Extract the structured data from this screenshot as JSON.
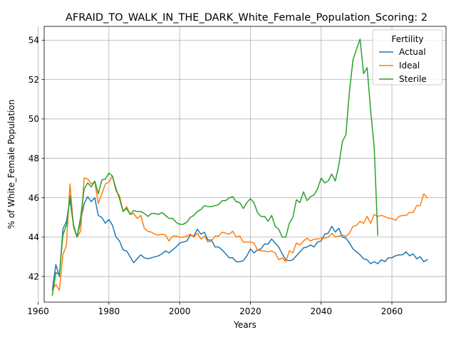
{
  "chart_data": {
    "type": "line",
    "title": "AFRAID_TO_WALK_IN_THE_DARK_White_Female_Population_Scoring: 2",
    "xlabel": "Years",
    "ylabel": "% of White_Female Population",
    "xlim": [
      1961.7,
      2075.3
    ],
    "ylim": [
      40.7,
      54.7
    ],
    "xticks": [
      1960,
      1980,
      2000,
      2020,
      2040,
      2060
    ],
    "yticks": [
      42,
      44,
      46,
      48,
      50,
      52,
      54
    ],
    "grid": true,
    "legend": {
      "title": "Fertility",
      "placement": "top-right"
    },
    "series": [
      {
        "name": "Actual",
        "color": "#1f77b4",
        "x": [
          1964,
          1965,
          1966,
          1967,
          1968,
          1969,
          1970,
          1971,
          1972,
          1973,
          1974,
          1975,
          1976,
          1977,
          1978,
          1979,
          1980,
          1981,
          1982,
          1983,
          1984,
          1985,
          1986,
          1987,
          1988,
          1989,
          1990,
          1991,
          1992,
          1993,
          1994,
          1995,
          1996,
          1997,
          1998,
          1999,
          2000,
          2001,
          2002,
          2003,
          2004,
          2005,
          2006,
          2007,
          2008,
          2009,
          2010,
          2011,
          2012,
          2013,
          2014,
          2015,
          2016,
          2017,
          2018,
          2019,
          2020,
          2021,
          2022,
          2023,
          2024,
          2025,
          2026,
          2027,
          2028,
          2029,
          2030,
          2031,
          2032,
          2033,
          2034,
          2035,
          2036,
          2037,
          2038,
          2039,
          2040,
          2041,
          2042,
          2043,
          2044,
          2045,
          2046,
          2047,
          2048,
          2049,
          2050,
          2051,
          2052,
          2053,
          2054,
          2055,
          2056,
          2057,
          2058,
          2059,
          2060,
          2061,
          2062,
          2063,
          2064,
          2065,
          2066,
          2067,
          2068,
          2069,
          2070
        ],
        "values": [
          41.3,
          42.6,
          42.0,
          44.4,
          44.8,
          45.9,
          44.6,
          44.0,
          44.8,
          45.7,
          46.05,
          45.8,
          46.0,
          45.1,
          45.0,
          44.7,
          44.9,
          44.6,
          44.0,
          43.8,
          43.35,
          43.3,
          43.0,
          42.7,
          42.9,
          43.1,
          42.95,
          42.9,
          42.95,
          43.0,
          43.05,
          43.15,
          43.3,
          43.2,
          43.35,
          43.5,
          43.7,
          43.75,
          43.8,
          44.1,
          44.05,
          44.4,
          44.15,
          44.25,
          43.85,
          43.85,
          43.5,
          43.5,
          43.35,
          43.15,
          42.95,
          42.95,
          42.75,
          42.75,
          42.8,
          43.05,
          43.4,
          43.2,
          43.35,
          43.4,
          43.65,
          43.65,
          43.9,
          43.7,
          43.5,
          43.15,
          42.85,
          42.8,
          42.85,
          43.05,
          43.25,
          43.45,
          43.5,
          43.6,
          43.5,
          43.75,
          43.8,
          44.15,
          44.2,
          44.55,
          44.25,
          44.45,
          44.0,
          43.95,
          43.7,
          43.4,
          43.25,
          43.1,
          42.9,
          42.85,
          42.65,
          42.75,
          42.65,
          42.85,
          42.75,
          42.95,
          42.95,
          43.05,
          43.1,
          43.1,
          43.25,
          43.05,
          43.15,
          42.9,
          43.0,
          42.75,
          42.85
        ]
      },
      {
        "name": "Ideal",
        "color": "#ff7f0e",
        "x": [
          1964,
          1965,
          1966,
          1967,
          1968,
          1969,
          1970,
          1971,
          1972,
          1973,
          1974,
          1975,
          1976,
          1977,
          1978,
          1979,
          1980,
          1981,
          1982,
          1983,
          1984,
          1985,
          1986,
          1987,
          1988,
          1989,
          1990,
          1991,
          1992,
          1993,
          1994,
          1995,
          1996,
          1997,
          1998,
          1999,
          2000,
          2001,
          2002,
          2003,
          2004,
          2005,
          2006,
          2007,
          2008,
          2009,
          2010,
          2011,
          2012,
          2013,
          2014,
          2015,
          2016,
          2017,
          2018,
          2019,
          2020,
          2021,
          2022,
          2023,
          2024,
          2025,
          2026,
          2027,
          2028,
          2029,
          2030,
          2031,
          2032,
          2033,
          2034,
          2035,
          2036,
          2037,
          2038,
          2039,
          2040,
          2041,
          2042,
          2043,
          2044,
          2045,
          2046,
          2047,
          2048,
          2049,
          2050,
          2051,
          2052,
          2053,
          2054,
          2055,
          2056,
          2057,
          2058,
          2059,
          2060,
          2061,
          2062,
          2063,
          2064,
          2065,
          2066,
          2067,
          2068,
          2069,
          2070
        ],
        "values": [
          41.3,
          41.6,
          41.3,
          43.1,
          43.6,
          46.7,
          44.5,
          44.0,
          44.3,
          47.0,
          46.95,
          46.7,
          46.8,
          45.7,
          46.2,
          46.7,
          46.8,
          47.1,
          46.35,
          46.1,
          45.3,
          45.55,
          45.15,
          45.2,
          44.95,
          45.1,
          44.45,
          44.3,
          44.25,
          44.15,
          44.1,
          44.15,
          44.1,
          43.8,
          44.05,
          44.05,
          44.0,
          44.0,
          44.05,
          44.15,
          44.0,
          44.2,
          43.9,
          44.05,
          43.75,
          43.8,
          44.05,
          44.05,
          44.25,
          44.2,
          44.15,
          44.3,
          44.0,
          44.05,
          43.75,
          43.75,
          43.75,
          43.7,
          43.35,
          43.3,
          43.3,
          43.25,
          43.3,
          43.2,
          42.85,
          42.95,
          42.75,
          43.3,
          43.2,
          43.7,
          43.6,
          43.8,
          43.95,
          43.8,
          43.9,
          43.9,
          43.95,
          43.95,
          44.0,
          44.2,
          44.0,
          44.05,
          44.1,
          44.05,
          44.2,
          44.55,
          44.6,
          44.8,
          44.7,
          45.05,
          44.7,
          45.15,
          45.05,
          45.1,
          45.05,
          44.95,
          44.95,
          44.85,
          45.05,
          45.1,
          45.1,
          45.25,
          45.25,
          45.6,
          45.6,
          46.2,
          46.0
        ]
      },
      {
        "name": "Sterile",
        "color": "#2ca02c",
        "x": [
          1964,
          1965,
          1966,
          1967,
          1968,
          1969,
          1970,
          1971,
          1972,
          1973,
          1974,
          1975,
          1976,
          1977,
          1978,
          1979,
          1980,
          1981,
          1982,
          1983,
          1984,
          1985,
          1986,
          1987,
          1988,
          1989,
          1990,
          1991,
          1992,
          1993,
          1994,
          1995,
          1996,
          1997,
          1998,
          1999,
          2000,
          2001,
          2002,
          2003,
          2004,
          2005,
          2006,
          2007,
          2008,
          2009,
          2010,
          2011,
          2012,
          2013,
          2014,
          2015,
          2016,
          2017,
          2018,
          2019,
          2020,
          2021,
          2022,
          2023,
          2024,
          2025,
          2026,
          2027,
          2028,
          2029,
          2030,
          2031,
          2032,
          2033,
          2034,
          2035,
          2036,
          2037,
          2038,
          2039,
          2040,
          2041,
          2042,
          2043,
          2044,
          2045,
          2046,
          2047,
          2048,
          2049,
          2050,
          2051,
          2052,
          2053,
          2054,
          2055,
          2056
        ],
        "values": [
          41.05,
          42.2,
          42.1,
          44.1,
          44.6,
          46.1,
          44.6,
          44.0,
          45.0,
          46.45,
          46.75,
          46.55,
          46.85,
          46.2,
          46.9,
          46.95,
          47.25,
          47.1,
          46.45,
          45.95,
          45.3,
          45.45,
          45.15,
          45.35,
          45.3,
          45.3,
          45.2,
          45.05,
          45.2,
          45.2,
          45.15,
          45.25,
          45.1,
          44.95,
          44.95,
          44.75,
          44.65,
          44.65,
          44.75,
          45.0,
          45.1,
          45.3,
          45.4,
          45.6,
          45.55,
          45.55,
          45.6,
          45.65,
          45.85,
          45.85,
          46.0,
          46.05,
          45.8,
          45.75,
          45.45,
          45.75,
          45.95,
          45.75,
          45.25,
          45.05,
          45.05,
          44.8,
          45.1,
          44.55,
          44.4,
          44.0,
          44.0,
          44.7,
          45.0,
          45.9,
          45.75,
          46.3,
          45.85,
          46.05,
          46.15,
          46.45,
          47.0,
          46.75,
          46.85,
          47.2,
          46.85,
          47.65,
          48.85,
          49.2,
          51.4,
          53.0,
          53.55,
          54.05,
          52.3,
          52.6,
          50.4,
          48.55,
          44.1
        ]
      }
    ]
  }
}
